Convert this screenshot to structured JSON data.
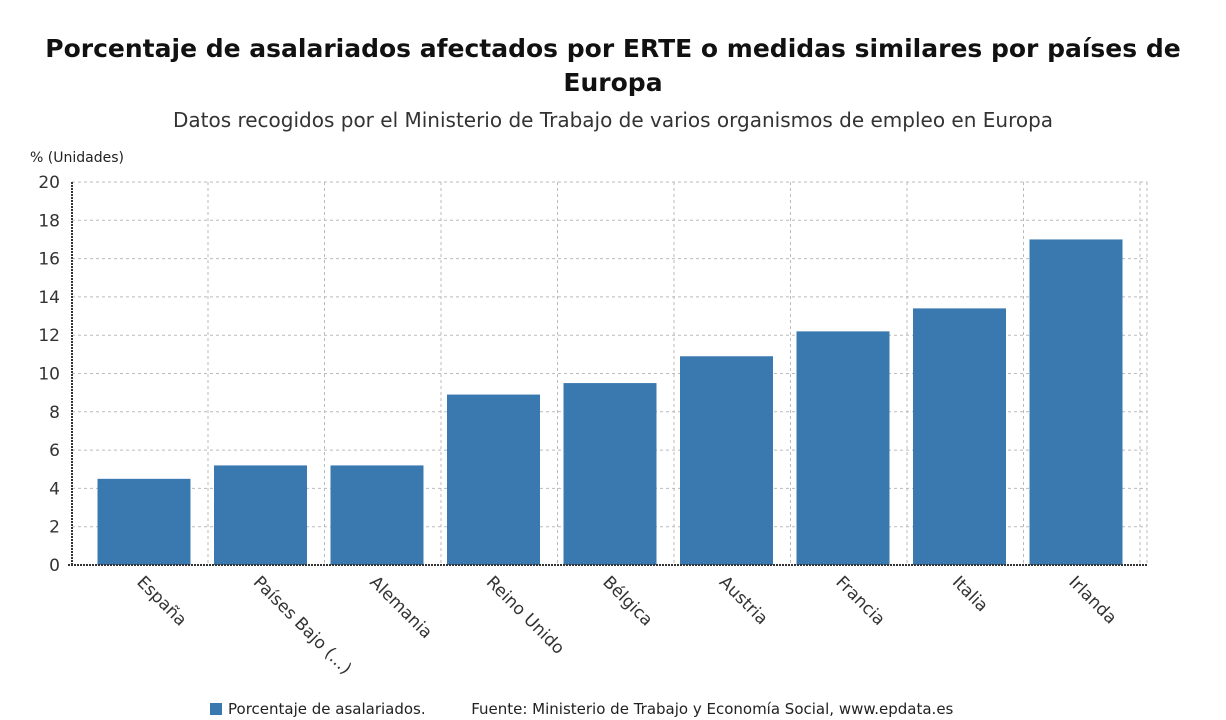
{
  "chart_data": {
    "type": "bar",
    "title": "Porcentaje de asalariados afectados por ERTE o medidas similares por países de Europa",
    "subtitle": "Datos recogidos por el Ministerio de Trabajo de varios organismos de empleo en Europa",
    "ylabel": "% (Unidades)",
    "xlabel": "",
    "ylim": [
      0,
      20
    ],
    "yticks": [
      0,
      2,
      4,
      6,
      8,
      10,
      12,
      14,
      16,
      18,
      20
    ],
    "grid": true,
    "legend_placement": "bottom",
    "categories": [
      "España",
      "Países Bajo (...)",
      "Alemania",
      "Reino Unido",
      "Bélgica",
      "Austria",
      "Francia",
      "Italia",
      "Irlanda"
    ],
    "series": [
      {
        "name": "Porcentaje de asalariados.",
        "values": [
          4.5,
          5.2,
          5.2,
          8.9,
          9.5,
          10.9,
          12.2,
          13.4,
          17.0
        ],
        "color": "#3a78b0"
      }
    ],
    "source": "Fuente: Ministerio de Trabajo y Economía Social, www.epdata.es"
  }
}
